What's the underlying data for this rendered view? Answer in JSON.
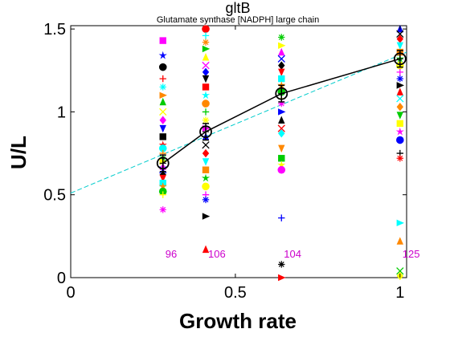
{
  "chart_data": {
    "type": "scatter",
    "title": "gltB",
    "subtitle": "Glutamate synthase [NADPH] large chain",
    "xlabel": "Growth rate",
    "ylabel": "U/L",
    "xlim": [
      0,
      1.02
    ],
    "ylim": [
      0,
      1.52
    ],
    "xticks": [
      0,
      0.5,
      1
    ],
    "yticks": [
      0,
      0.5,
      1,
      1.5
    ],
    "xtick_labels": [
      "0",
      "0.5",
      "1"
    ],
    "ytick_labels": [
      "0",
      "0.5",
      "1",
      "1.5"
    ],
    "mean_line": {
      "x": [
        0.28,
        0.41,
        0.64,
        1.0
      ],
      "y": [
        0.69,
        0.88,
        1.11,
        1.32
      ],
      "err": [
        0.05,
        0.05,
        0.05,
        0.05
      ]
    },
    "fit_line": {
      "x": [
        0,
        1.02
      ],
      "y": [
        0.51,
        1.36
      ]
    },
    "counts": [
      {
        "x": 0.28,
        "label": "96"
      },
      {
        "x": 0.41,
        "label": "106"
      },
      {
        "x": 0.64,
        "label": "104"
      },
      {
        "x": 1.0,
        "label": "125"
      }
    ],
    "scatter": [
      {
        "x": 0.28,
        "y": [
          1.43,
          1.34,
          1.27,
          1.2,
          1.15,
          1.1,
          1.06,
          1.0,
          0.95,
          0.9,
          0.85,
          0.8,
          0.78,
          0.75,
          0.72,
          0.7,
          0.67,
          0.65,
          0.62,
          0.6,
          0.57,
          0.55,
          0.52,
          0.5,
          0.41
        ]
      },
      {
        "x": 0.41,
        "y": [
          1.5,
          1.46,
          1.42,
          1.38,
          1.33,
          1.28,
          1.24,
          1.2,
          1.15,
          1.1,
          1.05,
          1.0,
          0.95,
          0.9,
          0.85,
          0.8,
          0.75,
          0.7,
          0.65,
          0.6,
          0.55,
          0.5,
          0.47,
          0.37,
          0.17
        ]
      },
      {
        "x": 0.64,
        "y": [
          1.45,
          1.4,
          1.36,
          1.32,
          1.28,
          1.24,
          1.2,
          1.16,
          1.12,
          1.08,
          1.05,
          1.0,
          0.95,
          0.9,
          0.87,
          0.78,
          0.72,
          0.68,
          0.65,
          0.36,
          0.08,
          0.0
        ]
      },
      {
        "x": 1.0,
        "y": [
          1.5,
          1.47,
          1.44,
          1.4,
          1.36,
          1.32,
          1.28,
          1.24,
          1.2,
          1.16,
          1.12,
          1.08,
          1.03,
          0.98,
          0.93,
          0.88,
          0.83,
          0.75,
          0.72,
          0.33,
          0.22,
          0.04,
          0.01
        ]
      }
    ],
    "colors": [
      "#ff00ff",
      "#ff0000",
      "#00cc00",
      "#0000ff",
      "#00ffff",
      "#ffff00",
      "#000000",
      "#ff8800"
    ],
    "markers": [
      "square",
      "star",
      "circle",
      "plus",
      "asterisk",
      "triangle-right",
      "triangle-up",
      "x",
      "diamond",
      "triangle-down"
    ],
    "fit_color": "#00cccc",
    "count_color": "#cc00cc",
    "mean_color": "#000000",
    "grid": false
  }
}
